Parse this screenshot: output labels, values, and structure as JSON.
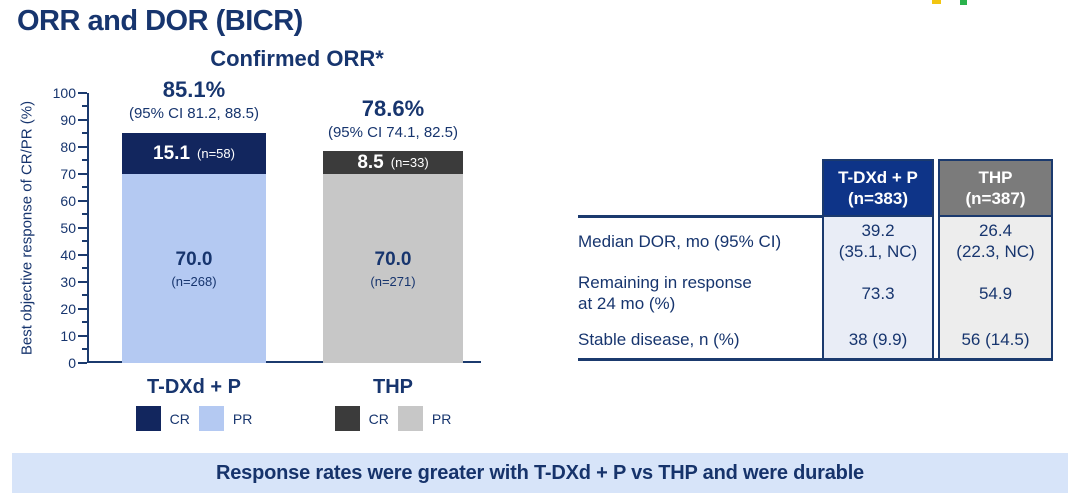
{
  "page": {
    "title": "ORR and DOR (BICR)",
    "banner": "Response rates were greater with T-DXd + P vs THP and were durable"
  },
  "colors": {
    "navy_text": "#17356e",
    "border_navy": "#1b3a6e",
    "cr_tdxd": "#12265e",
    "pr_tdxd": "#b4c9f2",
    "cr_thp": "#3b3b3b",
    "pr_thp": "#c7c7c7",
    "header_tdxd": "#0e3488",
    "header_thp": "#7b7b7b",
    "cell_tdxd": "#e9edf6",
    "cell_thp": "#ededed",
    "banner_bg": "#d7e4f9",
    "logo_yellow": "#f2c511",
    "logo_green": "#2bb24c"
  },
  "chart_data": {
    "type": "bar",
    "stacked": true,
    "title": "Confirmed ORR*",
    "ylabel": "Best objective response of CR/PR (%)",
    "ylim": [
      0,
      100
    ],
    "yticks": [
      100,
      90,
      80,
      70,
      60,
      50,
      40,
      30,
      20,
      10,
      0
    ],
    "grid": false,
    "legend_position": "below-each-bar",
    "categories": [
      "T-DXd + P",
      "THP"
    ],
    "series": [
      {
        "name": "CR",
        "values": [
          15.1,
          8.5
        ],
        "labels": [
          "15.1",
          "8.5"
        ],
        "n_labels": [
          "(n=58)",
          "(n=33)"
        ]
      },
      {
        "name": "PR",
        "values": [
          70.0,
          70.0
        ],
        "labels": [
          "70.0",
          "70.0"
        ],
        "n_labels": [
          "(n=268)",
          "(n=271)"
        ]
      }
    ],
    "totals": [
      {
        "orr": "85.1%",
        "ci": "(95% CI 81.2, 88.5)"
      },
      {
        "orr": "78.6%",
        "ci": "(95% CI 74.1, 82.5)"
      }
    ]
  },
  "table": {
    "header": [
      {
        "line1": "T-DXd + P",
        "line2": "(n=383)"
      },
      {
        "line1": "THP",
        "line2": "(n=387)"
      }
    ],
    "rows": [
      {
        "label": "Median DOR, mo (95% CI)",
        "tdxd": "39.2\n(35.1, NC)",
        "thp": "26.4\n(22.3, NC)"
      },
      {
        "label": "Remaining in response\nat 24 mo (%)",
        "tdxd": "73.3",
        "thp": "54.9"
      },
      {
        "label": "Stable disease, n (%)",
        "tdxd": "38 (9.9)",
        "thp": "56 (14.5)"
      }
    ]
  }
}
